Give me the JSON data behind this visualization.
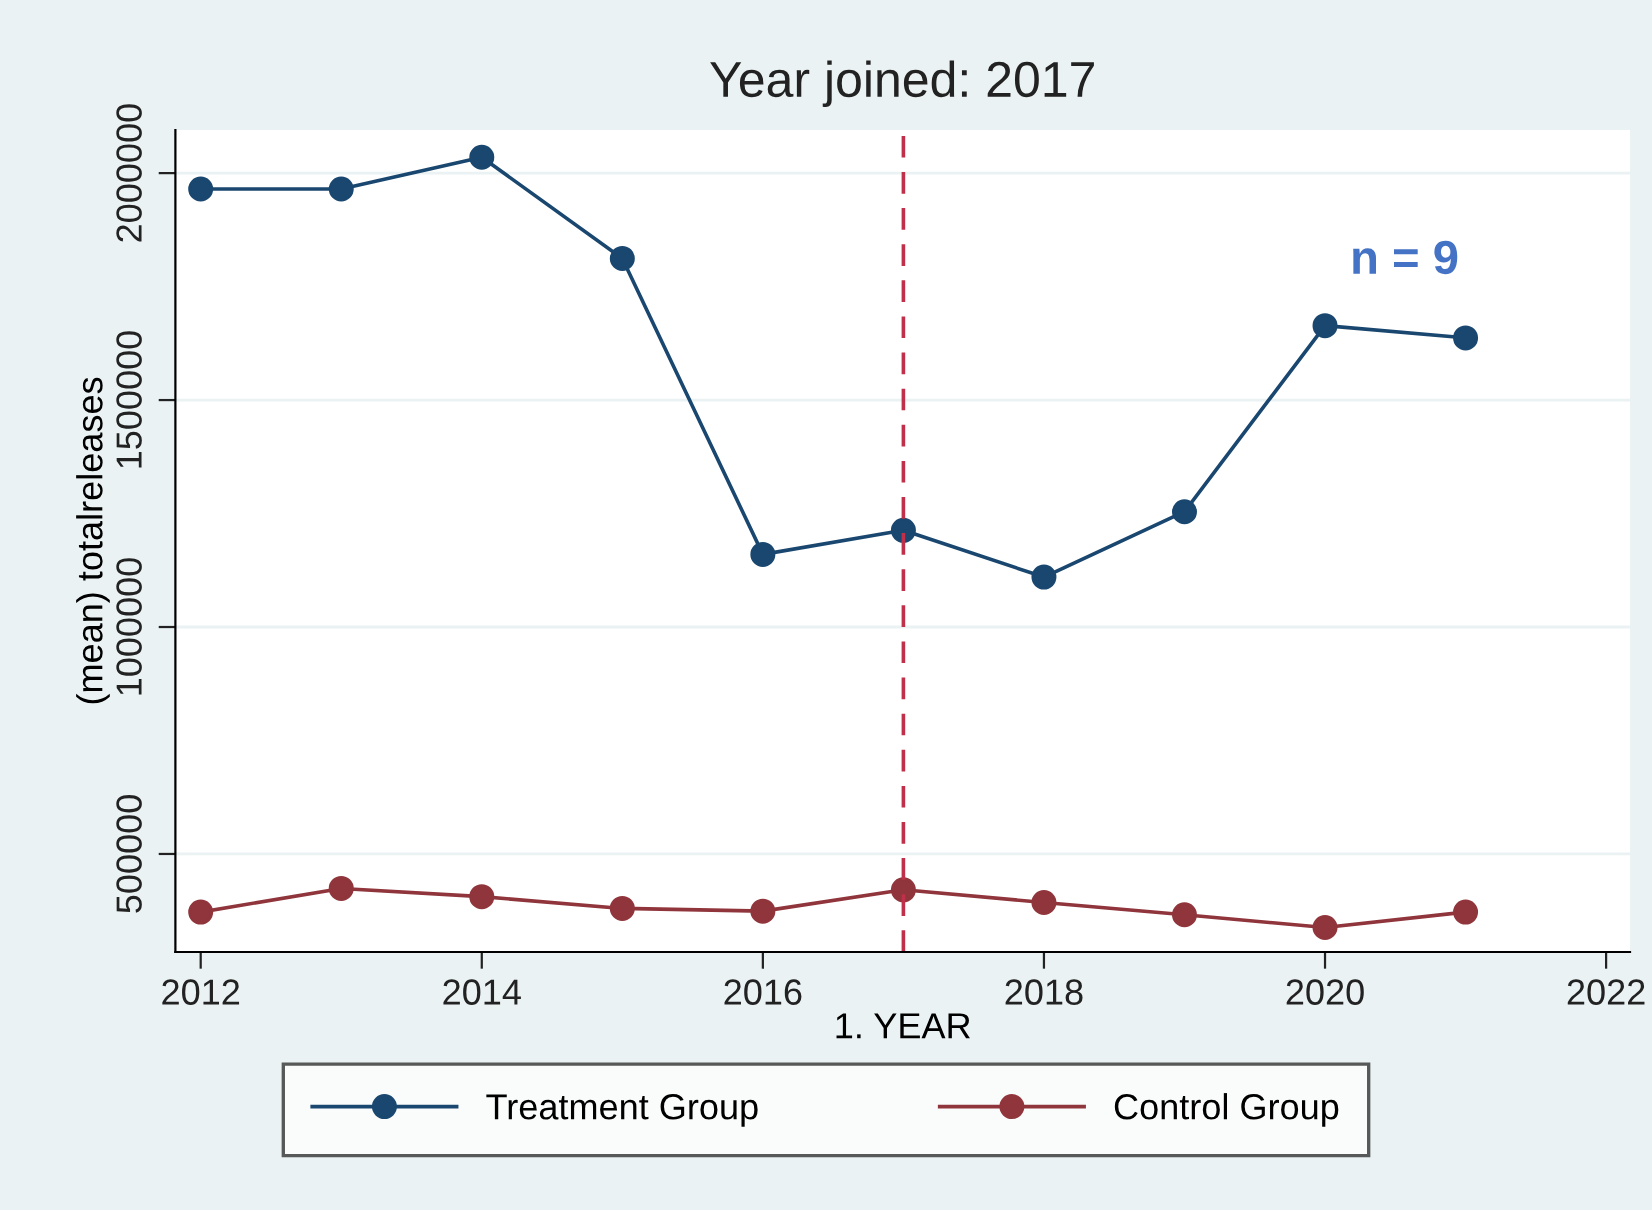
{
  "chart_data": {
    "type": "line",
    "title": "Year joined: 2017",
    "xlabel": "1. YEAR",
    "ylabel": "(mean) totalreleases",
    "x": [
      2012,
      2013,
      2014,
      2015,
      2016,
      2017,
      2018,
      2019,
      2020,
      2021
    ],
    "series": [
      {
        "name": "Treatment Group",
        "color": "#1a476f",
        "values": [
          1965000,
          1965000,
          2035000,
          1812000,
          1160000,
          1213000,
          1110000,
          1254000,
          1664000,
          1637000
        ]
      },
      {
        "name": "Control Group",
        "color": "#90353b",
        "values": [
          372000,
          424000,
          406000,
          380000,
          374000,
          421000,
          393000,
          366000,
          338000,
          372000
        ]
      }
    ],
    "xlim": [
      2011.82,
      2022.17
    ],
    "xticks": [
      2012,
      2014,
      2016,
      2018,
      2020,
      2022
    ],
    "ylim": [
      284000,
      2095000
    ],
    "yticks": [
      500000,
      1000000,
      1500000,
      2000000
    ],
    "ref_lines": [
      {
        "axis": "x",
        "value": 2017,
        "color": "#c0304a",
        "line_style": "dashed"
      }
    ],
    "annotations": [
      "n = 9"
    ],
    "grid": "y",
    "legend": "bottom",
    "marker": "circle",
    "line_style": "solid"
  }
}
